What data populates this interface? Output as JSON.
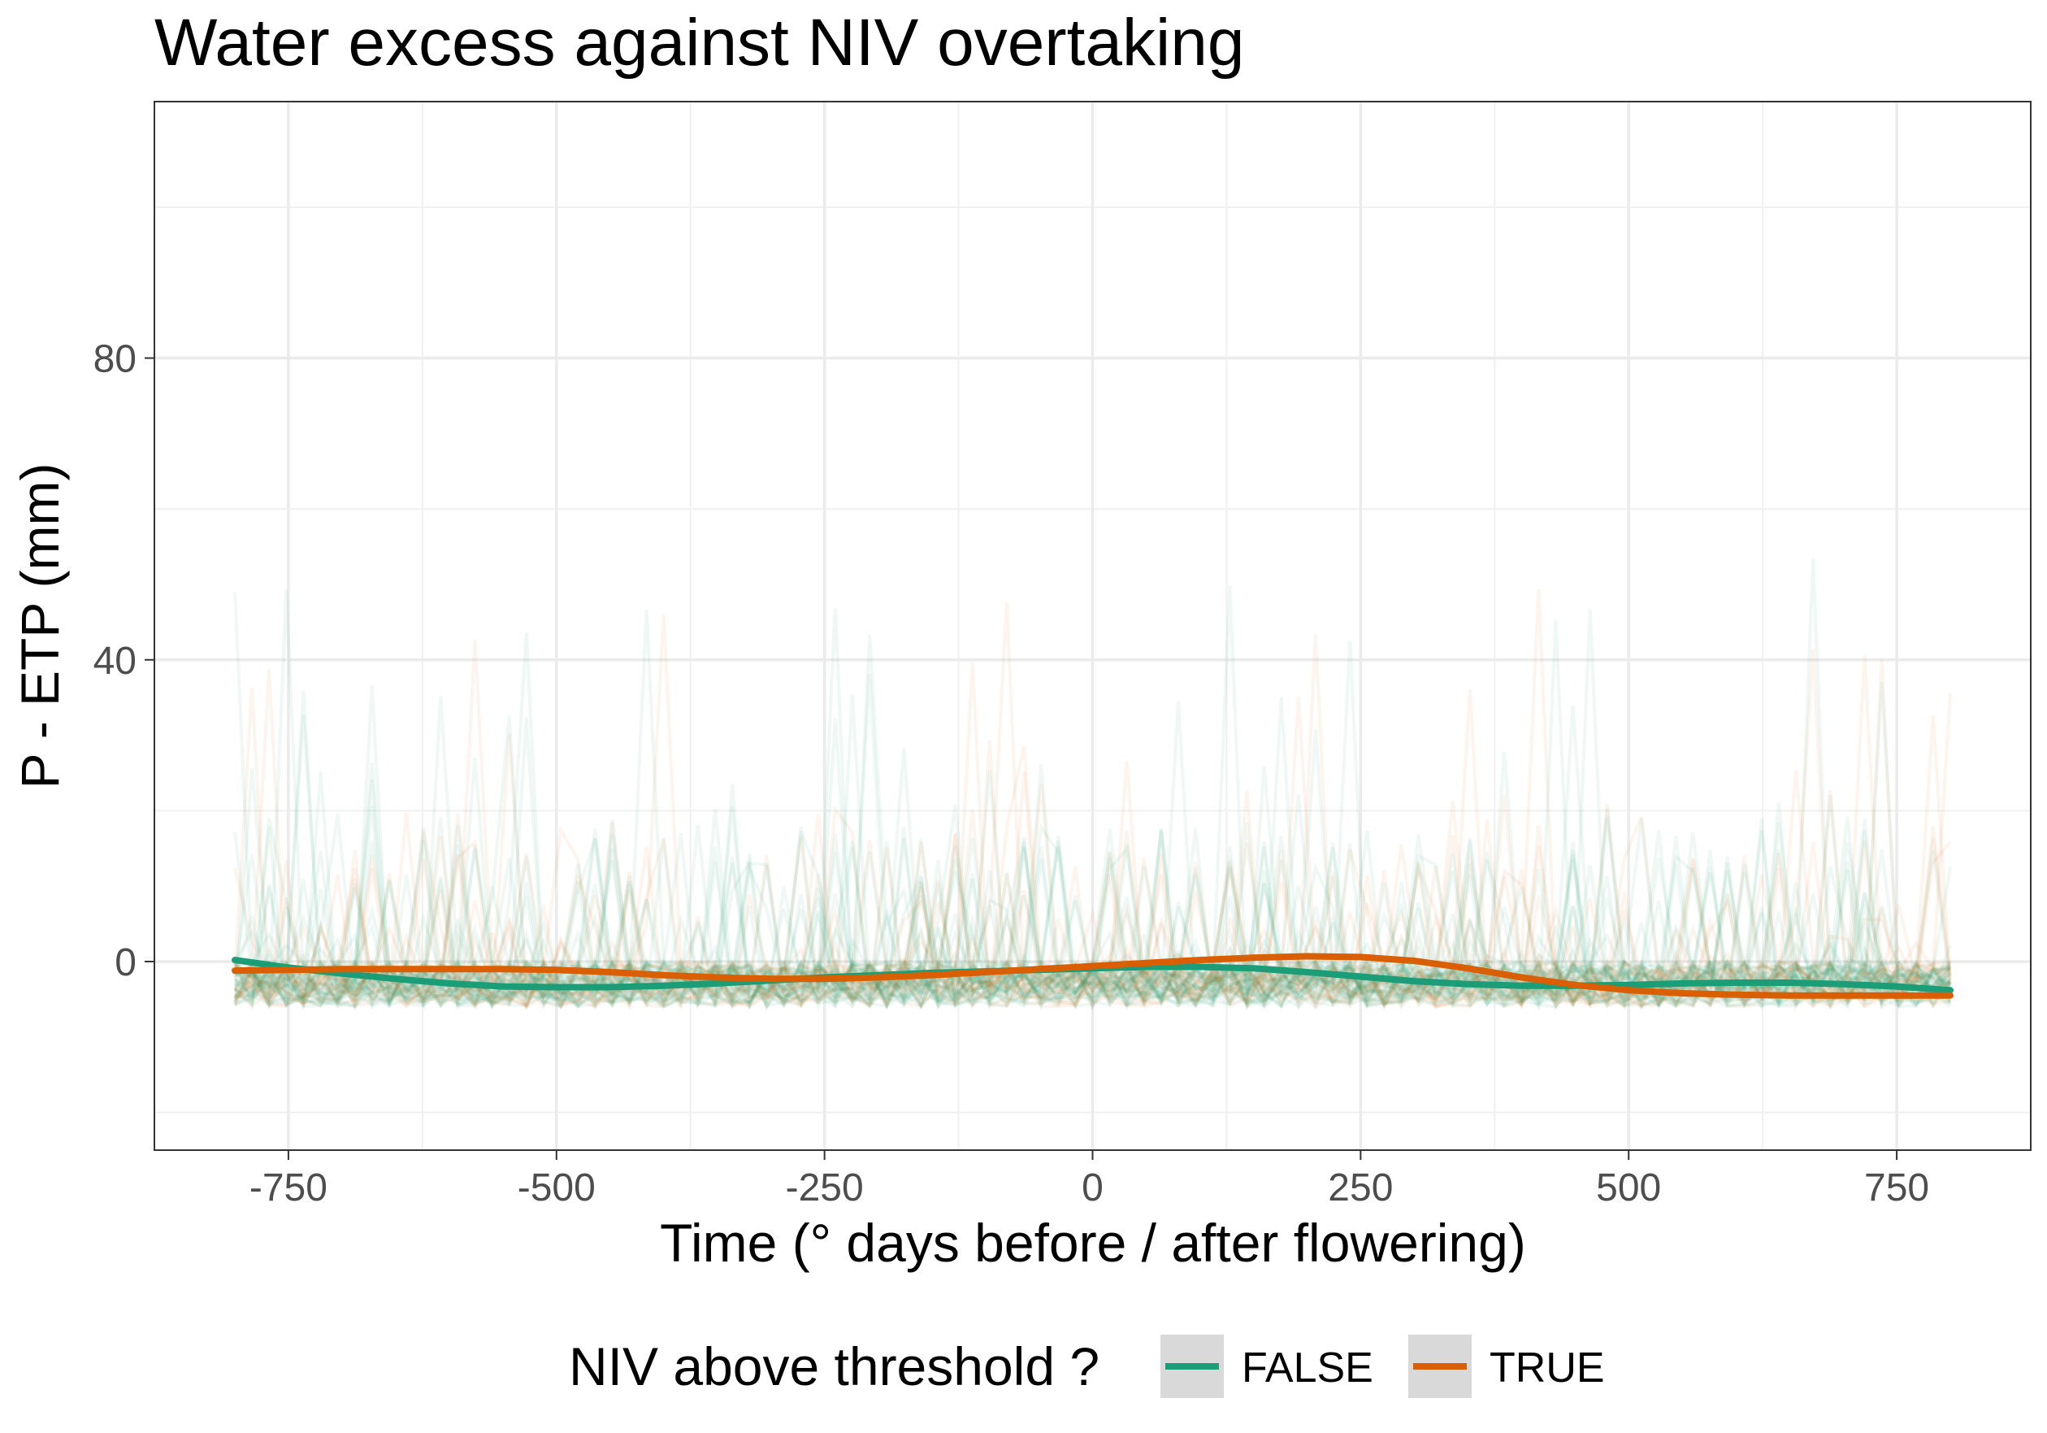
{
  "chart_data": {
    "type": "line",
    "title": "Water excess against NIV overtaking",
    "xlabel": "Time (° days before / after flowering)",
    "ylabel": "P - ETP (mm)",
    "xlim": [
      -875,
      875
    ],
    "ylim": [
      -25,
      114
    ],
    "x_ticks": [
      -750,
      -500,
      -250,
      0,
      250,
      500,
      750
    ],
    "x_tick_labels": [
      "-750",
      "-500",
      "-250",
      "0",
      "250",
      "500",
      "750"
    ],
    "y_ticks": [
      0,
      40,
      80
    ],
    "y_tick_labels": [
      "0",
      "40",
      "80"
    ],
    "grid": true,
    "legend": {
      "title": "NIV above threshold ?",
      "position": "bottom",
      "entries": [
        "FALSE",
        "TRUE"
      ]
    },
    "colors": {
      "FALSE": "#1b9e77",
      "TRUE": "#d95f02"
    },
    "series": [
      {
        "name": "FALSE",
        "x": [
          -800,
          -750,
          -700,
          -650,
          -600,
          -550,
          -500,
          -450,
          -400,
          -350,
          -300,
          -250,
          -200,
          -150,
          -100,
          -50,
          0,
          50,
          100,
          150,
          200,
          250,
          300,
          350,
          400,
          450,
          500,
          550,
          600,
          650,
          700,
          750,
          800
        ],
        "values": [
          0.2,
          -0.8,
          -1.6,
          -2.3,
          -2.9,
          -3.3,
          -3.4,
          -3.4,
          -3.2,
          -2.9,
          -2.5,
          -2.1,
          -1.8,
          -1.5,
          -1.3,
          -1.1,
          -0.9,
          -0.7,
          -0.7,
          -0.9,
          -1.4,
          -2.0,
          -2.6,
          -3.0,
          -3.2,
          -3.2,
          -3.1,
          -2.9,
          -2.8,
          -2.8,
          -3.0,
          -3.3,
          -3.8
        ]
      },
      {
        "name": "TRUE",
        "x": [
          -800,
          -750,
          -700,
          -650,
          -600,
          -550,
          -500,
          -450,
          -400,
          -350,
          -300,
          -250,
          -200,
          -150,
          -100,
          -50,
          0,
          50,
          100,
          150,
          200,
          250,
          300,
          350,
          400,
          450,
          500,
          550,
          600,
          650,
          700,
          750,
          800
        ],
        "values": [
          -1.2,
          -1.1,
          -1.0,
          -1.0,
          -1.0,
          -1.0,
          -1.1,
          -1.4,
          -1.8,
          -2.1,
          -2.3,
          -2.3,
          -2.1,
          -1.8,
          -1.4,
          -1.0,
          -0.6,
          -0.2,
          0.2,
          0.5,
          0.7,
          0.6,
          0.1,
          -0.9,
          -2.1,
          -3.1,
          -3.8,
          -4.2,
          -4.4,
          -4.5,
          -4.5,
          -4.5,
          -4.5
        ]
      }
    ]
  }
}
